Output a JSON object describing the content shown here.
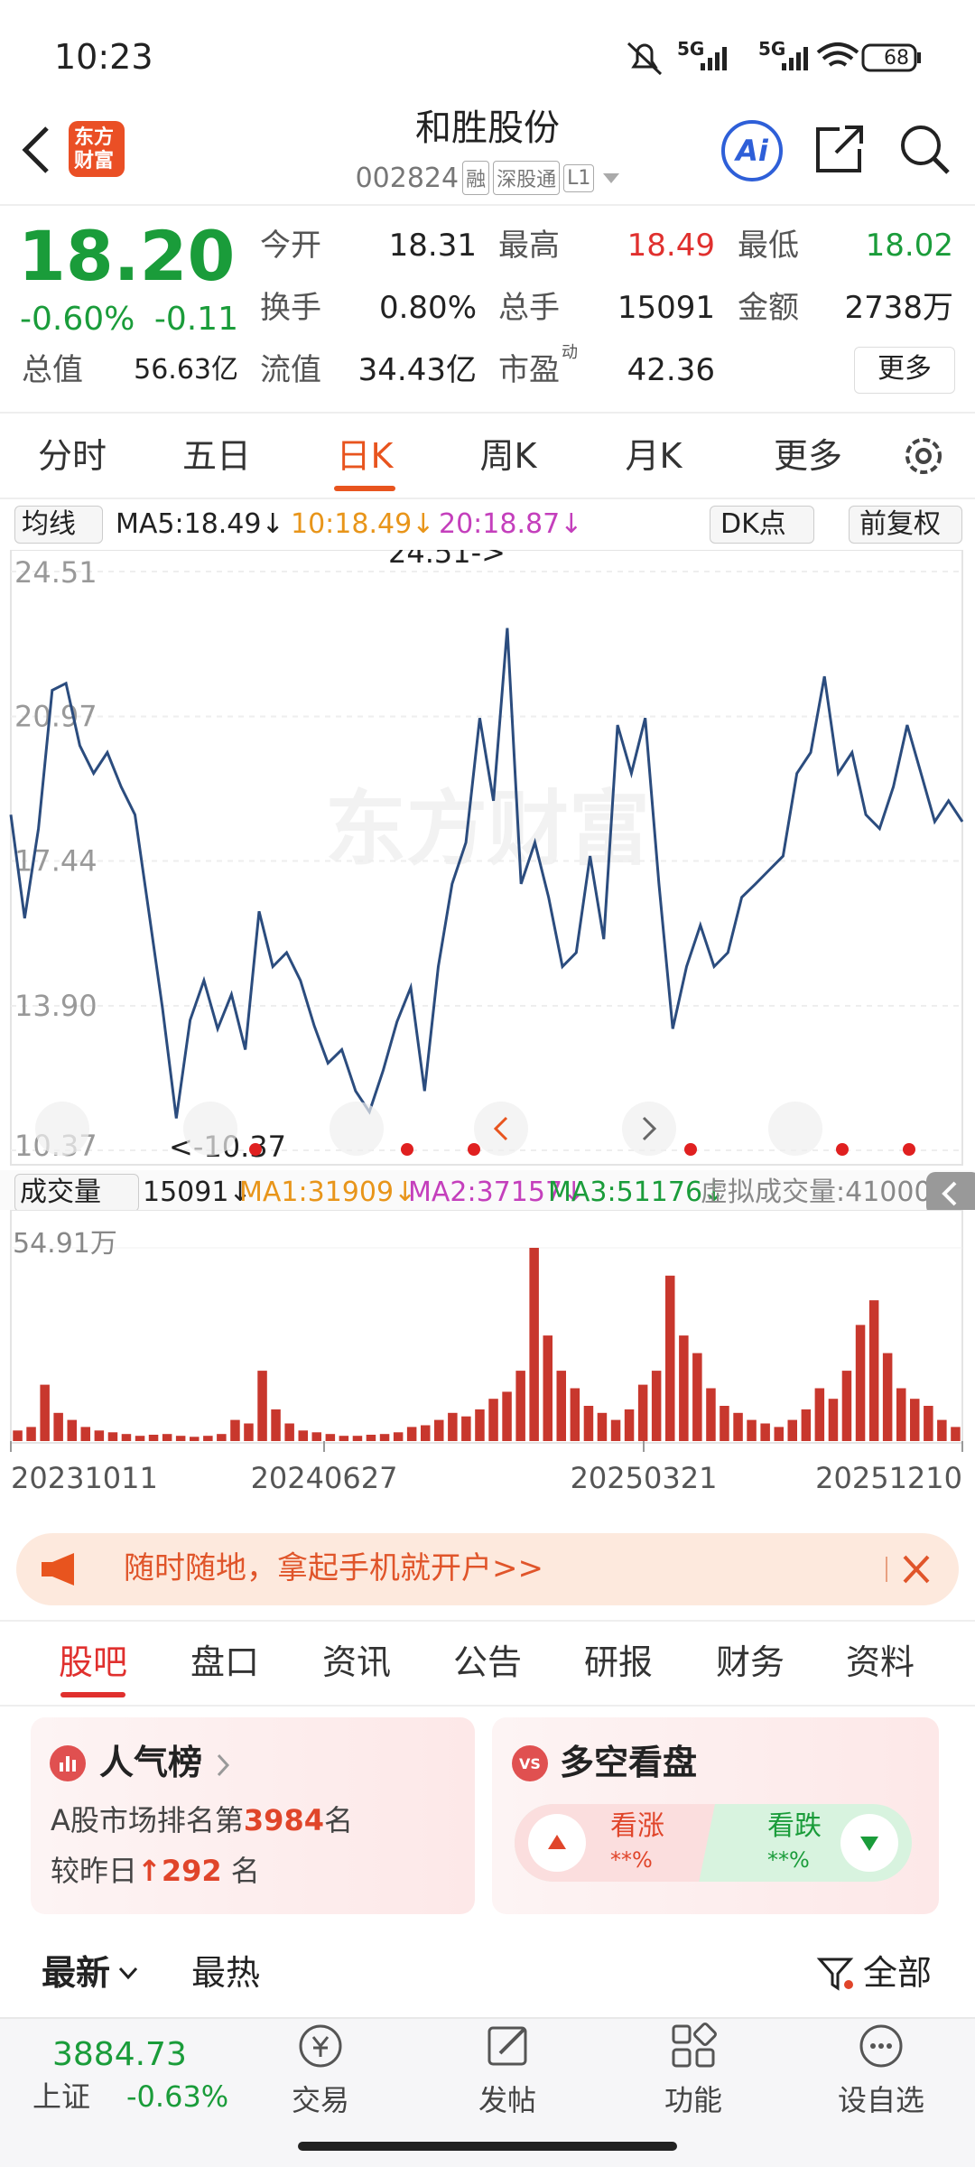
{
  "status_bar": {
    "time": "10:23",
    "signal_1": "5G",
    "signal_2": "5G",
    "battery": "68"
  },
  "header": {
    "title": "和胜股份",
    "code": "002824",
    "tags": [
      "融",
      "深股通",
      "L1"
    ],
    "logo_top": "东方",
    "logo_bottom": "财富",
    "ai": "Ai"
  },
  "quote": {
    "price": "18.20",
    "change_pct": "-0.60%",
    "change": "-0.11",
    "fields": [
      {
        "label": "今开",
        "value": "18.31"
      },
      {
        "label": "最高",
        "value": "18.49"
      },
      {
        "label": "最低",
        "value": "18.02"
      },
      {
        "label": "换手",
        "value": "0.80%"
      },
      {
        "label": "总手",
        "value": "15091"
      },
      {
        "label": "金额",
        "value": "2738万"
      },
      {
        "label": "总值",
        "value": "56.63亿"
      },
      {
        "label": "流值",
        "value": "34.43亿"
      },
      {
        "label": "市盈",
        "note": "动",
        "value": "42.36"
      }
    ],
    "more": "更多"
  },
  "period_tabs": [
    "分时",
    "五日",
    "日K",
    "周K",
    "月K",
    "更多"
  ],
  "ma_bar": {
    "dropdown": "均线",
    "ma5": "MA5:18.49↓",
    "ma10": "10:18.49↓",
    "ma20": "20:18.87↓",
    "dk": "DK点",
    "adjust": "前复权"
  },
  "price_chart": {
    "type": "line",
    "watermark": "东方财富",
    "color": "#2b4c7e",
    "ylim": [
      10.37,
      24.51
    ],
    "yticks": [
      24.51,
      20.97,
      17.44,
      {
        "value": 13.9,
        "label": "13.90"
      },
      10.37
    ],
    "max_label": "24.51->",
    "min_label": "<-10.37",
    "values": [
      18.57,
      16.04,
      18.23,
      21.61,
      21.78,
      20.26,
      19.58,
      20.09,
      19.25,
      18.57,
      16.21,
      13.84,
      11.15,
      13.55,
      14.52,
      13.34,
      14.18,
      12.83,
      16.21,
      14.86,
      15.2,
      14.52,
      13.41,
      12.5,
      12.83,
      11.82,
      11.31,
      12.32,
      13.51,
      14.35,
      11.82,
      14.86,
      16.88,
      17.89,
      20.93,
      18.91,
      23.13,
      16.88,
      17.89,
      16.55,
      14.86,
      15.2,
      17.56,
      15.53,
      20.76,
      19.58,
      20.93,
      16.88,
      13.34,
      14.86,
      15.87,
      14.86,
      15.2,
      16.55,
      16.88,
      17.22,
      17.56,
      19.58,
      20.09,
      21.95,
      19.58,
      20.09,
      18.57,
      18.23,
      19.25,
      20.76,
      19.58,
      18.4,
      18.91,
      18.4
    ]
  },
  "volume_header": {
    "dropdown": "成交量",
    "volume": "15091↓",
    "ma1": "MA1:31909↓",
    "ma2": "MA2:37157↓",
    "ma3": "MA3:51176↓",
    "virtual": "虚拟成交量:41000"
  },
  "volume_chart": {
    "type": "bar",
    "color": "#c8372d",
    "ylim": [
      0,
      549100
    ],
    "yticks": [
      {
        "value": 549100,
        "label": "54.91万"
      }
    ],
    "dates": [
      "20231011",
      "20240627",
      "20250321",
      "20251210"
    ],
    "values": [
      30000,
      40000,
      160000,
      80000,
      60000,
      40000,
      30000,
      25000,
      20000,
      15000,
      18000,
      20000,
      15000,
      12000,
      15000,
      20000,
      60000,
      50000,
      200000,
      90000,
      50000,
      30000,
      25000,
      20000,
      15000,
      15000,
      18000,
      20000,
      25000,
      40000,
      45000,
      60000,
      80000,
      70000,
      90000,
      120000,
      140000,
      200000,
      549100,
      300000,
      200000,
      150000,
      100000,
      80000,
      60000,
      90000,
      160000,
      200000,
      470000,
      300000,
      250000,
      150000,
      100000,
      80000,
      60000,
      50000,
      40000,
      60000,
      90000,
      150000,
      120000,
      200000,
      330000,
      400000,
      250000,
      150000,
      120000,
      100000,
      60000,
      40000
    ]
  },
  "banner": "随时随地，拿起手机就开户>>",
  "section_tabs": [
    "股吧",
    "盘口",
    "资讯",
    "公告",
    "研报",
    "财务",
    "资料"
  ],
  "popularity": {
    "title": "人气榜",
    "rank_prefix": "A股市场排名第",
    "rank": "3984",
    "rank_suffix": "名",
    "change_prefix": "较昨日",
    "change": "292",
    "change_suffix": "名"
  },
  "sentiment": {
    "title": "多空看盘",
    "up": "看涨",
    "up_value": "**%",
    "down": "看跌",
    "down_value": "**%"
  },
  "feed_tabs": [
    "最新",
    "最热"
  ],
  "filter": "全部",
  "bottom_bar": {
    "index_value": "3884.73",
    "index_name": "上证",
    "index_change": "-0.63%",
    "items": [
      "交易",
      "发帖",
      "功能",
      "设自选"
    ]
  }
}
